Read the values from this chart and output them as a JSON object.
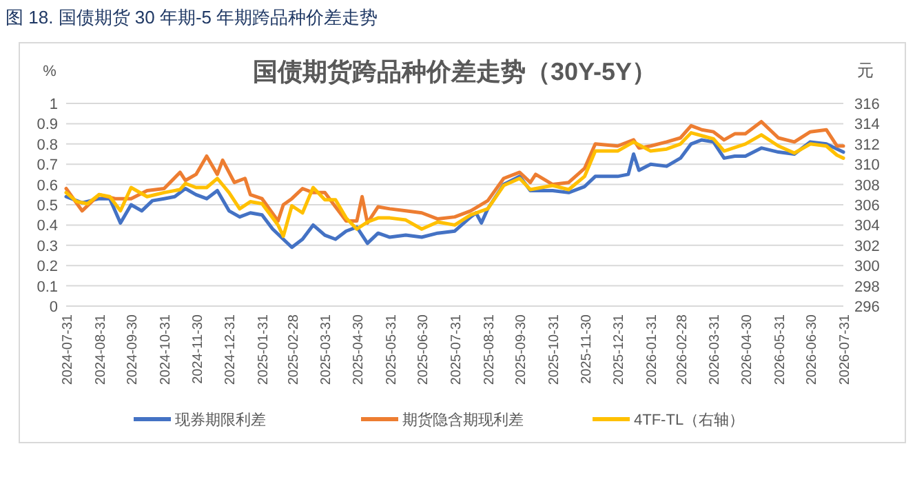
{
  "chart_data": {
    "type": "line",
    "title": "国债期货跨品种价差走势（30Y-5Y）",
    "ylabel": "%",
    "y2label": "元",
    "annotations": [
      "图 18. 国债期货 30 年期-5 年期跨品种价差走势"
    ],
    "xlim": [
      "2024-07-31",
      "2026-07-31"
    ],
    "xticks": [
      "2024-07-31",
      "2024-08-31",
      "2024-09-30",
      "2024-10-31",
      "2024-11-30",
      "2024-12-31",
      "2025-01-31",
      "2025-02-28",
      "2025-03-31",
      "2025-04-30",
      "2025-05-31",
      "2025-06-30",
      "2025-07-31",
      "2025-08-31",
      "2025-09-30",
      "2025-10-31",
      "2025-11-30",
      "2025-12-31",
      "2026-01-31",
      "2026-02-28",
      "2026-03-31",
      "2026-04-30",
      "2026-05-31",
      "2026-06-30",
      "2026-07-31"
    ],
    "ylim": [
      0,
      1
    ],
    "yticks": [
      0,
      0.1,
      0.2,
      0.3,
      0.4,
      0.5,
      0.6,
      0.7,
      0.8,
      0.9,
      1
    ],
    "y2lim": [
      296,
      316
    ],
    "y2ticks": [
      296,
      298,
      300,
      302,
      304,
      306,
      308,
      310,
      312,
      314,
      316
    ],
    "grid": "y",
    "legend": "bottom",
    "series": [
      {
        "name": "现券期限利差",
        "color": "#4472c4",
        "x": [
          "2024-07-31",
          "2024-08-15",
          "2024-08-31",
          "2024-09-10",
          "2024-09-20",
          "2024-09-30",
          "2024-10-10",
          "2024-10-20",
          "2024-10-31",
          "2024-11-10",
          "2024-11-20",
          "2024-11-30",
          "2024-12-10",
          "2024-12-20",
          "2024-12-31",
          "2025-01-10",
          "2025-01-20",
          "2025-01-31",
          "2025-02-10",
          "2025-02-20",
          "2025-02-28",
          "2025-03-10",
          "2025-03-20",
          "2025-03-31",
          "2025-04-10",
          "2025-04-20",
          "2025-04-30",
          "2025-05-10",
          "2025-05-20",
          "2025-05-31",
          "2025-06-15",
          "2025-06-30",
          "2025-07-15",
          "2025-07-31",
          "2025-08-15",
          "2025-08-20",
          "2025-08-25",
          "2025-08-31",
          "2025-09-15",
          "2025-09-30",
          "2025-10-10",
          "2025-10-31",
          "2025-11-15",
          "2025-11-30",
          "2025-12-10",
          "2025-12-31",
          "2026-01-10",
          "2026-01-15",
          "2026-01-20",
          "2026-01-31",
          "2026-02-15",
          "2026-02-28",
          "2026-03-10",
          "2026-03-20",
          "2026-03-31",
          "2026-04-10",
          "2026-04-20",
          "2026-04-30",
          "2026-05-15",
          "2026-05-31",
          "2026-06-15",
          "2026-06-30",
          "2026-07-15",
          "2026-07-31"
        ],
        "values": [
          0.54,
          0.51,
          0.53,
          0.53,
          0.41,
          0.5,
          0.47,
          0.52,
          0.53,
          0.54,
          0.58,
          0.55,
          0.53,
          0.57,
          0.47,
          0.44,
          0.46,
          0.45,
          0.38,
          0.33,
          0.29,
          0.33,
          0.4,
          0.35,
          0.33,
          0.37,
          0.39,
          0.31,
          0.36,
          0.34,
          0.35,
          0.34,
          0.36,
          0.37,
          0.44,
          0.46,
          0.41,
          0.48,
          0.6,
          0.64,
          0.57,
          0.57,
          0.56,
          0.59,
          0.64,
          0.64,
          0.65,
          0.75,
          0.67,
          0.7,
          0.69,
          0.73,
          0.8,
          0.82,
          0.81,
          0.73,
          0.74,
          0.74,
          0.78,
          0.76,
          0.75,
          0.81,
          0.8,
          0.76
        ]
      },
      {
        "name": "期货隐含期现利差",
        "color": "#ed7d31",
        "x": [
          "2024-07-31",
          "2024-08-15",
          "2024-08-31",
          "2024-09-15",
          "2024-09-30",
          "2024-10-15",
          "2024-10-31",
          "2024-11-15",
          "2024-11-20",
          "2024-11-30",
          "2024-12-10",
          "2024-12-20",
          "2024-12-25",
          "2025-01-05",
          "2025-01-15",
          "2025-01-20",
          "2025-01-31",
          "2025-02-15",
          "2025-02-20",
          "2025-02-28",
          "2025-03-10",
          "2025-03-20",
          "2025-03-31",
          "2025-04-10",
          "2025-04-20",
          "2025-04-30",
          "2025-05-05",
          "2025-05-10",
          "2025-05-20",
          "2025-05-31",
          "2025-06-15",
          "2025-06-30",
          "2025-07-15",
          "2025-07-31",
          "2025-08-15",
          "2025-08-31",
          "2025-09-15",
          "2025-09-30",
          "2025-10-10",
          "2025-10-15",
          "2025-10-31",
          "2025-11-15",
          "2025-11-30",
          "2025-12-10",
          "2025-12-31",
          "2026-01-15",
          "2026-01-20",
          "2026-01-31",
          "2026-02-15",
          "2026-02-28",
          "2026-03-10",
          "2026-03-20",
          "2026-03-31",
          "2026-04-10",
          "2026-04-20",
          "2026-04-30",
          "2026-05-15",
          "2026-05-31",
          "2026-06-15",
          "2026-06-30",
          "2026-07-15",
          "2026-07-25",
          "2026-07-31"
        ],
        "values": [
          0.58,
          0.47,
          0.55,
          0.53,
          0.53,
          0.57,
          0.58,
          0.66,
          0.62,
          0.65,
          0.74,
          0.65,
          0.72,
          0.61,
          0.63,
          0.55,
          0.53,
          0.42,
          0.5,
          0.53,
          0.58,
          0.56,
          0.56,
          0.49,
          0.42,
          0.42,
          0.54,
          0.41,
          0.49,
          0.48,
          0.47,
          0.46,
          0.43,
          0.44,
          0.47,
          0.52,
          0.63,
          0.66,
          0.61,
          0.65,
          0.6,
          0.61,
          0.68,
          0.8,
          0.79,
          0.82,
          0.78,
          0.79,
          0.81,
          0.83,
          0.89,
          0.87,
          0.86,
          0.82,
          0.85,
          0.85,
          0.91,
          0.83,
          0.81,
          0.86,
          0.87,
          0.79,
          0.79
        ]
      },
      {
        "name": "4TF-TL（右轴）",
        "color": "#ffc000",
        "axis": "y2",
        "x": [
          "2024-07-31",
          "2024-08-10",
          "2024-08-20",
          "2024-08-31",
          "2024-09-10",
          "2024-09-20",
          "2024-09-30",
          "2024-10-15",
          "2024-10-31",
          "2024-11-15",
          "2024-11-20",
          "2024-11-30",
          "2024-12-10",
          "2024-12-20",
          "2024-12-31",
          "2025-01-10",
          "2025-01-20",
          "2025-01-31",
          "2025-02-15",
          "2025-02-20",
          "2025-02-28",
          "2025-03-10",
          "2025-03-20",
          "2025-03-31",
          "2025-04-10",
          "2025-04-20",
          "2025-04-30",
          "2025-05-10",
          "2025-05-20",
          "2025-05-31",
          "2025-06-15",
          "2025-06-30",
          "2025-07-15",
          "2025-07-31",
          "2025-08-15",
          "2025-08-31",
          "2025-09-15",
          "2025-09-30",
          "2025-10-10",
          "2025-10-31",
          "2025-11-15",
          "2025-11-30",
          "2025-12-10",
          "2025-12-31",
          "2026-01-15",
          "2026-01-31",
          "2026-02-15",
          "2026-02-28",
          "2026-03-10",
          "2026-03-31",
          "2026-04-10",
          "2026-04-30",
          "2026-05-15",
          "2026-05-31",
          "2026-06-15",
          "2026-06-30",
          "2026-07-15",
          "2026-07-25",
          "2026-07-31"
        ],
        "values": [
          307.2,
          306.3,
          306.1,
          307.0,
          306.8,
          305.4,
          307.7,
          306.8,
          307.2,
          307.5,
          308.1,
          307.7,
          307.7,
          308.6,
          307.2,
          305.6,
          306.3,
          306.1,
          304.0,
          302.9,
          305.9,
          305.2,
          307.7,
          306.5,
          306.5,
          304.7,
          303.6,
          304.3,
          304.7,
          304.7,
          304.5,
          303.6,
          304.3,
          304.0,
          305.0,
          305.6,
          307.9,
          308.6,
          307.5,
          307.9,
          307.5,
          308.8,
          311.3,
          311.3,
          312.2,
          311.3,
          311.5,
          312.0,
          313.1,
          312.5,
          311.3,
          312.0,
          312.9,
          311.8,
          311.1,
          312.0,
          311.8,
          310.9,
          310.6
        ]
      }
    ]
  }
}
